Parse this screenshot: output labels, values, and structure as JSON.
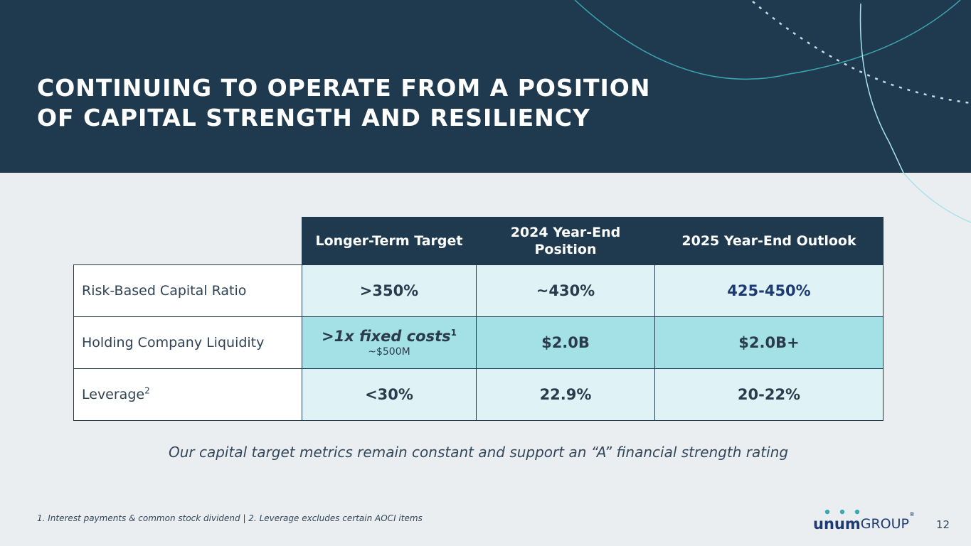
{
  "slide": {
    "title_lines": [
      "CONTINUING TO OPERATE FROM A POSITION",
      "OF CAPITAL STRENGTH AND RESILIENCY"
    ],
    "page_number": "12",
    "tagline": "Our capital target metrics remain constant and support an “A” financial strength rating",
    "footnote": "1. Interest payments & common stock dividend  |  2. Leverage excludes certain AOCI items"
  },
  "table": {
    "headers": [
      "Longer-Term Target",
      "2024 Year-End Position",
      "2025 Year-End Outlook"
    ],
    "rows": [
      {
        "label": "Risk-Based Capital Ratio",
        "target": ">350%",
        "position_2024": "~430%",
        "outlook_2025": "425-450%"
      },
      {
        "label": "Holding Company Liquidity",
        "target": ">1x fixed costs",
        "target_sup": "1",
        "target_sub": "~$500M",
        "position_2024": "$2.0B",
        "outlook_2025": "$2.0B+"
      },
      {
        "label": "Leverage",
        "label_sup": "2",
        "target": "<30%",
        "position_2024": "22.9%",
        "outlook_2025": "20-22%"
      }
    ]
  },
  "logo": {
    "word": "unum",
    "group": "GROUP",
    "mark": "®"
  },
  "colors": {
    "header_bg": "#1f3a4f",
    "page_bg": "#ebeef1",
    "cell_light": "#dff3f6",
    "cell_dark": "#a4e1e6",
    "brand_blue": "#1e3a73",
    "accent_teal": "#3aa6b0"
  }
}
